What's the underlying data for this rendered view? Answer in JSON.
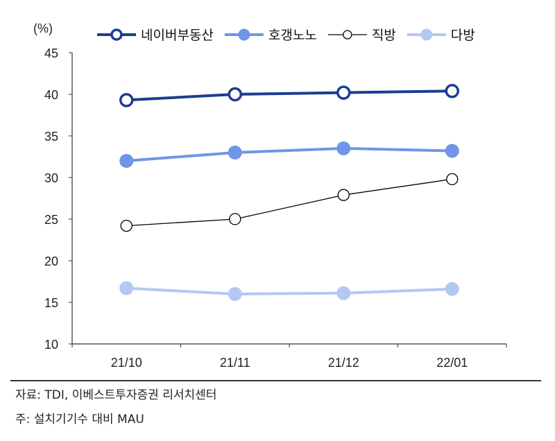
{
  "chart_data": {
    "type": "line",
    "unit_label": "(%)",
    "categories": [
      "21/10",
      "21/11",
      "21/12",
      "22/01"
    ],
    "ylim": [
      10,
      45
    ],
    "yticks": [
      10,
      15,
      20,
      25,
      30,
      35,
      40,
      45
    ],
    "grid": false,
    "legend_position": "top",
    "series": [
      {
        "name": "네이버부동산",
        "values": [
          39.3,
          40.0,
          40.2,
          40.4
        ],
        "color": "#1a3d8f",
        "marker": "hollow",
        "width": 4
      },
      {
        "name": "호갱노노",
        "values": [
          32.0,
          33.0,
          33.5,
          33.2
        ],
        "color": "#6f95e6",
        "marker": "filled",
        "width": 4
      },
      {
        "name": "직방",
        "values": [
          24.2,
          25.0,
          27.9,
          29.8
        ],
        "color": "#000000",
        "marker": "hollow",
        "width": 1.3
      },
      {
        "name": "다방",
        "values": [
          16.7,
          16.0,
          16.1,
          16.6
        ],
        "color": "#b4c8f4",
        "marker": "filled",
        "width": 4
      }
    ]
  },
  "footnotes": {
    "source": "자료: TDI, 이베스트투자증권 리서치센터",
    "note": "주: 설치기기수 대비 MAU"
  }
}
